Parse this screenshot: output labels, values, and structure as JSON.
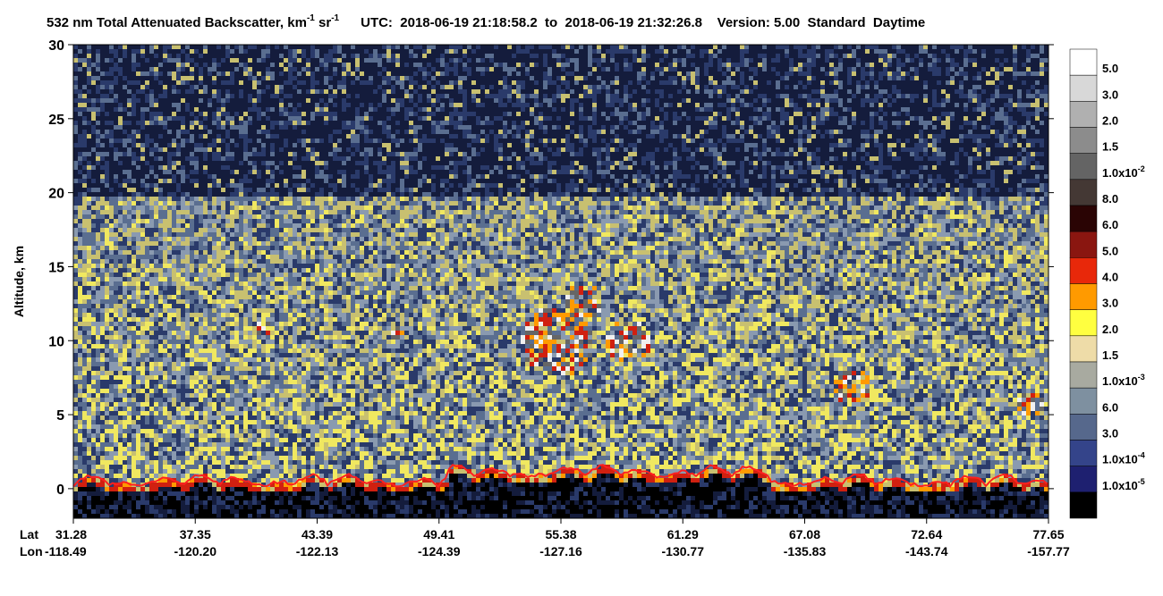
{
  "chart_data": {
    "type": "curtain",
    "title": {
      "parts": [
        "532 nm Total Attenuated Backscatter, km",
        "-1",
        " sr",
        "-1"
      ],
      "info": "UTC:  2018-06-19 21:18:58.2  to  2018-06-19 21:32:26.8    Version: 5.00  Standard  Daytime"
    },
    "y_label": "Altitude, km",
    "ylim": [
      -2,
      30
    ],
    "yticks": [
      0,
      5,
      10,
      15,
      20,
      25,
      30
    ],
    "x_row_labels": [
      "Lat",
      "Lon"
    ],
    "categories": [
      {
        "lat": "31.28",
        "lon": "-118.49"
      },
      {
        "lat": "37.35",
        "lon": "-120.20"
      },
      {
        "lat": "43.39",
        "lon": "-122.13"
      },
      {
        "lat": "49.41",
        "lon": "-124.39"
      },
      {
        "lat": "55.38",
        "lon": "-127.16"
      },
      {
        "lat": "61.29",
        "lon": "-130.77"
      },
      {
        "lat": "67.08",
        "lon": "-135.83"
      },
      {
        "lat": "72.64",
        "lon": "-143.74"
      },
      {
        "lat": "77.65",
        "lon": "-157.77"
      }
    ],
    "colorbar": {
      "colors": [
        "#ffffff",
        "#d8d8d8",
        "#b0b0b0",
        "#8c8c8c",
        "#646464",
        "#443834",
        "#2a0404",
        "#8a1610",
        "#e8280a",
        "#ff9a00",
        "#ffff40",
        "#eedca8",
        "#a8aaa0",
        "#7e90a0",
        "#56688c",
        "#34448a",
        "#1e2070",
        "#000000"
      ],
      "labels": [
        {
          "text": "5.0"
        },
        {
          "text": "3.0"
        },
        {
          "text": "2.0"
        },
        {
          "text": "1.5"
        },
        {
          "text": "1.0x10",
          "sup": "-2"
        },
        {
          "text": "8.0"
        },
        {
          "text": "6.0"
        },
        {
          "text": "5.0"
        },
        {
          "text": "4.0"
        },
        {
          "text": "3.0"
        },
        {
          "text": "2.0"
        },
        {
          "text": "1.5"
        },
        {
          "text": "1.0x10",
          "sup": "-3"
        },
        {
          "text": "6.0"
        },
        {
          "text": "3.0"
        },
        {
          "text": "1.0x10",
          "sup": "-4"
        },
        {
          "text": "1.0x10",
          "sup": "-5"
        }
      ]
    }
  }
}
